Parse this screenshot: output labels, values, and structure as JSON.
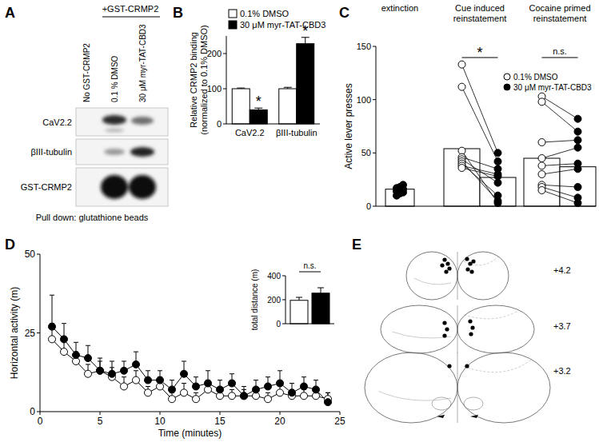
{
  "panel_labels": [
    "A",
    "B",
    "C",
    "D",
    "E"
  ],
  "blot": {
    "header": "+GST-CRMP2",
    "lanes": [
      "No GST-CRMP2",
      "0.1 % DMSO",
      "30 μM myr-TAT-CBD3"
    ],
    "rows": [
      "CaV2.2",
      "βIII-tubulin",
      "GST-CRMP2"
    ],
    "footer": "Pull down: glutathione beads"
  },
  "atlas": {
    "sections": [
      "+4.2",
      "+3.7",
      "+3.2"
    ]
  },
  "chart_data": [
    {
      "type": "bar",
      "categories": [
        "CaV2.2",
        "βIII-tubulin"
      ],
      "series": [
        {
          "name": "0.1% DMSO",
          "color": "#ffffff",
          "values": [
            100,
            100
          ],
          "errors": [
            2,
            4
          ]
        },
        {
          "name": "30 μM myr-TAT-CBD3",
          "color": "#000000",
          "values": [
            40,
            228
          ],
          "errors": [
            5,
            18
          ]
        }
      ],
      "annotations": [
        {
          "text": "*",
          "category": 0,
          "series": 1
        },
        {
          "text": "*",
          "category": 1,
          "series": 1
        }
      ],
      "y_label": [
        "Relative CRMP2 binding",
        "(normalized to 0.1% DMSO)"
      ],
      "ylim": [
        0,
        250
      ],
      "yticks": [
        0,
        100,
        200
      ],
      "legend": "top-left"
    },
    {
      "type": "bar",
      "categories": [
        "extinction",
        "Cue induced reinstatement",
        "Cocaine primed reinstatement"
      ],
      "y_label": "Active lever presses",
      "ylim": [
        0,
        150
      ],
      "yticks": [
        0,
        50,
        100,
        150
      ],
      "extinction": {
        "value": 16,
        "color": "#000000",
        "points": [
          10,
          12,
          13,
          14,
          15,
          16,
          17,
          18,
          20
        ]
      },
      "series": [
        {
          "name": "0.1% DMSO",
          "color": "#ffffff",
          "marker": "circle",
          "values": [
            null,
            54,
            45
          ],
          "points": [
            null,
            [
              133,
              112,
              52,
              46,
              44,
              42,
              40,
              38,
              36
            ],
            [
              103,
              98,
              60,
              45,
              38,
              30,
              20,
              18,
              15
            ]
          ]
        },
        {
          "name": "30 μM myr-TAT-CBD3",
          "color": "#000000",
          "marker": "circle",
          "values": [
            null,
            27,
            37
          ],
          "points": [
            null,
            [
              50,
              42,
              3,
              35,
              22,
              5,
              10,
              30,
              28
            ],
            [
              82,
              70,
              62,
              55,
              40,
              35,
              18,
              8,
              3
            ]
          ]
        }
      ],
      "annotations": [
        {
          "text": "*",
          "category": 1
        },
        {
          "text": "n.s.",
          "category": 2
        }
      ],
      "legend": "top-right"
    },
    {
      "type": "line",
      "x_label": "Time (minutes)",
      "y_label": "Horizontal activity (m)",
      "xlim": [
        0,
        25
      ],
      "ylim": [
        0,
        50
      ],
      "xticks": [
        0,
        5,
        10,
        15,
        20,
        25
      ],
      "yticks": [
        0,
        25,
        50
      ],
      "x": [
        1,
        2,
        3,
        4,
        5,
        6,
        7,
        8,
        9,
        10,
        11,
        12,
        13,
        14,
        15,
        16,
        17,
        18,
        19,
        20,
        21,
        22,
        23,
        24
      ],
      "series": [
        {
          "color": "#ffffff",
          "marker": "circle",
          "values": [
            23,
            19,
            16,
            12,
            13,
            11,
            8,
            10,
            6,
            8,
            4,
            6,
            4,
            7,
            5,
            5,
            5,
            5,
            4,
            6,
            5,
            5,
            5,
            4
          ],
          "errors": [
            5,
            4,
            3,
            3,
            3,
            3,
            3,
            3,
            2,
            3,
            2,
            3,
            2,
            3,
            2,
            2,
            2,
            2,
            2,
            3,
            2,
            2,
            2,
            2
          ]
        },
        {
          "color": "#000000",
          "marker": "circle",
          "values": [
            27,
            23,
            18,
            17,
            13,
            12,
            13,
            15,
            10,
            10,
            7,
            12,
            8,
            9,
            7,
            9,
            5,
            7,
            8,
            9,
            6,
            8,
            7,
            3
          ],
          "errors": [
            10,
            5,
            4,
            4,
            4,
            4,
            3,
            4,
            3,
            3,
            3,
            4,
            3,
            4,
            3,
            3,
            3,
            3,
            3,
            4,
            3,
            3,
            3,
            3
          ]
        }
      ]
    },
    {
      "type": "bar",
      "categories": [
        null,
        null
      ],
      "colors": [
        "#ffffff",
        "#000000"
      ],
      "values": [
        195,
        255
      ],
      "errors": [
        25,
        45
      ],
      "y_label": "total distance (m)",
      "ylim": [
        0,
        400
      ],
      "yticks": [
        0,
        200,
        400
      ],
      "annotations": [
        {
          "text": "n.s."
        }
      ]
    }
  ]
}
